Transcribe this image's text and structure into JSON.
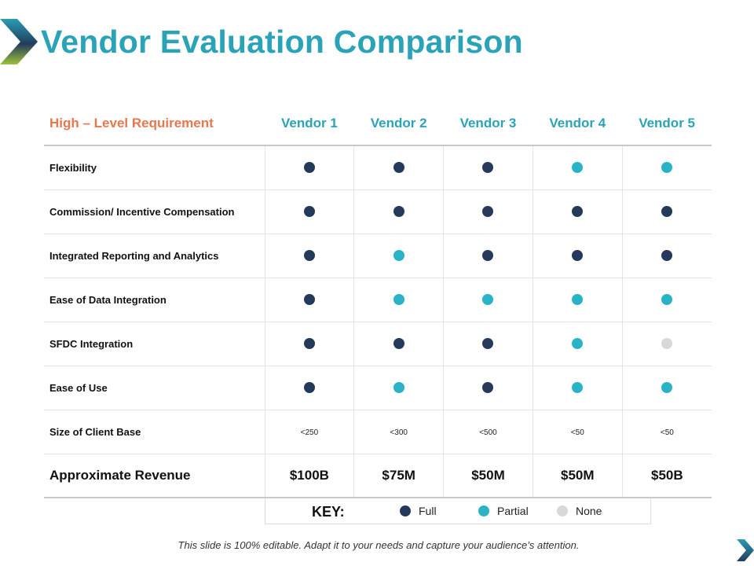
{
  "slide": {
    "title": "Vendor Evaluation Comparison",
    "footer": "This slide is 100% editable. Adapt it to your needs and capture your audience’s attention."
  },
  "colors": {
    "title": "#2aa3b8",
    "requirement_header": "#e8774e",
    "full": "#253a5b",
    "partial": "#2ab3c6",
    "none": "#d8d8d8"
  },
  "table": {
    "requirement_header": "High – Level Requirement",
    "vendors": [
      "Vendor 1",
      "Vendor 2",
      "Vendor 3",
      "Vendor 4",
      "Vendor 5"
    ],
    "rows": [
      {
        "label": "Flexibility",
        "ratings": [
          "full",
          "full",
          "full",
          "partial",
          "partial"
        ]
      },
      {
        "label": "Commission/  Incentive Compensation",
        "ratings": [
          "full",
          "full",
          "full",
          "full",
          "full"
        ]
      },
      {
        "label": "Integrated Reporting and Analytics",
        "ratings": [
          "full",
          "partial",
          "full",
          "full",
          "full"
        ]
      },
      {
        "label": "Ease of Data Integration",
        "ratings": [
          "full",
          "partial",
          "partial",
          "partial",
          "partial"
        ]
      },
      {
        "label": "SFDC Integration",
        "ratings": [
          "full",
          "full",
          "full",
          "partial",
          "none"
        ]
      },
      {
        "label": "Ease of Use",
        "ratings": [
          "full",
          "partial",
          "full",
          "partial",
          "partial"
        ]
      }
    ],
    "client_base": {
      "label": "Size of Client Base",
      "values": [
        "<250",
        "<300",
        "<500",
        "<50",
        "<50"
      ]
    },
    "revenue": {
      "label": "Approximate Revenue",
      "values": [
        "$100B",
        "$75M",
        "$50M",
        "$50M",
        "$50B"
      ]
    }
  },
  "key": {
    "label": "KEY:",
    "full": "Full",
    "partial": "Partial",
    "none": "None"
  }
}
